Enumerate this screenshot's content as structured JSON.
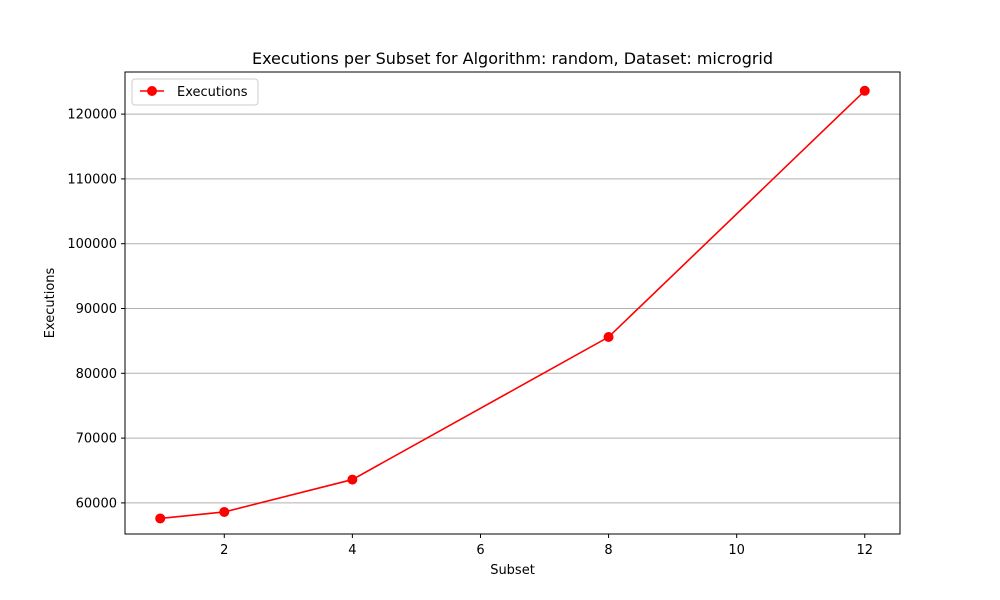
{
  "chart_data": {
    "type": "line",
    "title": "Executions per Subset for Algorithm: random, Dataset: microgrid",
    "xlabel": "Subset",
    "ylabel": "Executions",
    "x": [
      1,
      2,
      4,
      8,
      12
    ],
    "series": [
      {
        "name": "Executions",
        "color": "#ff0000",
        "marker": "circle",
        "values": [
          57600,
          58600,
          63600,
          85600,
          123600
        ]
      }
    ],
    "xlim": [
      0.45,
      12.55
    ],
    "ylim": [
      55200,
      126500
    ],
    "xticks": [
      2,
      4,
      6,
      8,
      10,
      12
    ],
    "yticks": [
      60000,
      70000,
      80000,
      90000,
      100000,
      110000,
      120000
    ],
    "grid": {
      "axis": "y",
      "color": "#b0b0b0"
    },
    "legend": "top-left"
  }
}
